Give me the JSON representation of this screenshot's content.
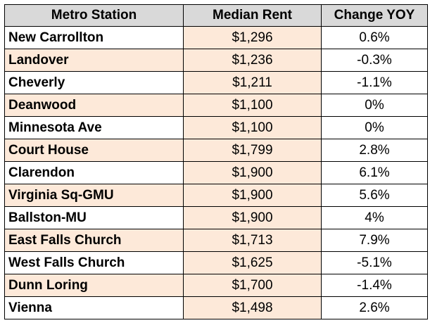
{
  "table": {
    "headers": {
      "station": "Metro Station",
      "rent": "Median Rent",
      "change": "Change YOY"
    },
    "rows": [
      {
        "station": "New Carrollton",
        "rent": "$1,296",
        "change": "0.6%"
      },
      {
        "station": "Landover",
        "rent": "$1,236",
        "change": "-0.3%"
      },
      {
        "station": "Cheverly",
        "rent": "$1,211",
        "change": "-1.1%"
      },
      {
        "station": "Deanwood",
        "rent": "$1,100",
        "change": "0%"
      },
      {
        "station": "Minnesota Ave",
        "rent": "$1,100",
        "change": "0%"
      },
      {
        "station": "Court House",
        "rent": "$1,799",
        "change": "2.8%"
      },
      {
        "station": "Clarendon",
        "rent": "$1,900",
        "change": "6.1%"
      },
      {
        "station": "Virginia Sq-GMU",
        "rent": "$1,900",
        "change": "5.6%"
      },
      {
        "station": "Ballston-MU",
        "rent": "$1,900",
        "change": "4%"
      },
      {
        "station": "East Falls Church",
        "rent": "$1,713",
        "change": "7.9%"
      },
      {
        "station": "West Falls Church",
        "rent": "$1,625",
        "change": "-5.1%"
      },
      {
        "station": "Dunn Loring",
        "rent": "$1,700",
        "change": "-1.4%"
      },
      {
        "station": "Vienna",
        "rent": "$1,498",
        "change": "2.6%"
      }
    ]
  },
  "colors": {
    "header_bg": "#d9d9d9",
    "highlight_bg": "#fde9d9",
    "plain_bg": "#ffffff",
    "border": "#000000"
  }
}
